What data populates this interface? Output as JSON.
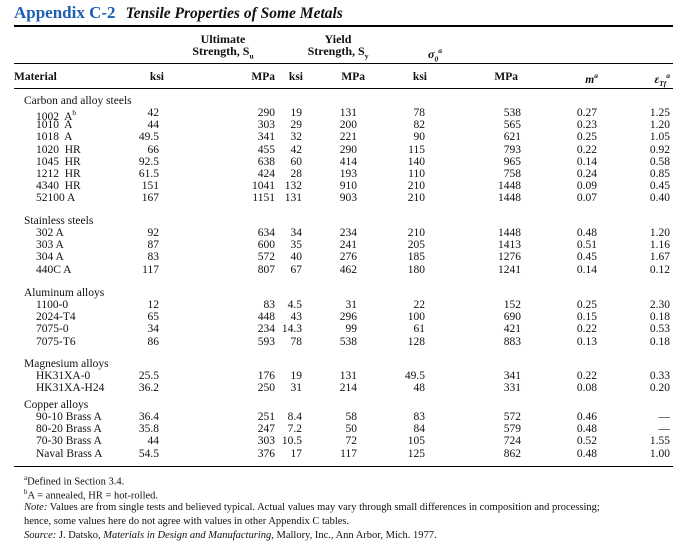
{
  "title": {
    "appendix": "Appendix C-2",
    "caption": "Tensile Properties of Some Metals"
  },
  "headers": {
    "ultimate_line1": "Ultimate",
    "ultimate_line2": "Strength, S",
    "ultimate_sub": "u",
    "yield_line1": "Yield",
    "yield_line2": "Strength, S",
    "yield_sub": "y",
    "sigma": "σ",
    "sigma_sub": "0",
    "sigma_sup": "a",
    "material": "Material",
    "units": [
      "ksi",
      "MPa",
      "ksi",
      "MPa",
      "ksi",
      "MPa"
    ],
    "m": "m",
    "m_sup": "a",
    "eps": "ε",
    "eps_sub": "Tf",
    "eps_sup": "a"
  },
  "groups": [
    {
      "title": "Carbon and alloy steels",
      "rows": [
        {
          "name": "1002  A",
          "sup": "b",
          "values": [
            "42",
            "290",
            "19",
            "131",
            "78",
            "538",
            "0.27",
            "1.25"
          ]
        },
        {
          "name": "1010  A",
          "values": [
            "44",
            "303",
            "29",
            "200",
            "82",
            "565",
            "0.23",
            "1.20"
          ]
        },
        {
          "name": "1018  A",
          "values": [
            "49.5",
            "341",
            "32",
            "221",
            "90",
            "621",
            "0.25",
            "1.05"
          ]
        },
        {
          "name": "1020  HR",
          "values": [
            "66",
            "455",
            "42",
            "290",
            "115",
            "793",
            "0.22",
            "0.92"
          ]
        },
        {
          "name": "1045  HR",
          "values": [
            "92.5",
            "638",
            "60",
            "414",
            "140",
            "965",
            "0.14",
            "0.58"
          ]
        },
        {
          "name": "1212  HR",
          "values": [
            "61.5",
            "424",
            "28",
            "193",
            "110",
            "758",
            "0.24",
            "0.85"
          ]
        },
        {
          "name": "4340  HR",
          "values": [
            "151",
            "1041",
            "132",
            "910",
            "210",
            "1448",
            "0.09",
            "0.45"
          ]
        },
        {
          "name": "52100 A",
          "values": [
            "167",
            "1151",
            "131",
            "903",
            "210",
            "1448",
            "0.07",
            "0.40"
          ]
        }
      ]
    },
    {
      "title": "Stainless steels",
      "rows": [
        {
          "name": "302 A",
          "values": [
            "92",
            "634",
            "34",
            "234",
            "210",
            "1448",
            "0.48",
            "1.20"
          ]
        },
        {
          "name": "303 A",
          "values": [
            "87",
            "600",
            "35",
            "241",
            "205",
            "1413",
            "0.51",
            "1.16"
          ]
        },
        {
          "name": "304 A",
          "values": [
            "83",
            "572",
            "40",
            "276",
            "185",
            "1276",
            "0.45",
            "1.67"
          ]
        },
        {
          "name": "440C A",
          "values": [
            "117",
            "807",
            "67",
            "462",
            "180",
            "1241",
            "0.14",
            "0.12"
          ]
        }
      ]
    },
    {
      "title": "Aluminum alloys",
      "rows": [
        {
          "name": "1100-0",
          "values": [
            "12",
            "83",
            "4.5",
            "31",
            "22",
            "152",
            "0.25",
            "2.30"
          ]
        },
        {
          "name": "2024-T4",
          "values": [
            "65",
            "448",
            "43",
            "296",
            "100",
            "690",
            "0.15",
            "0.18"
          ]
        },
        {
          "name": "7075-0",
          "values": [
            "34",
            "234",
            "14.3",
            "99",
            "61",
            "421",
            "0.22",
            "0.53"
          ]
        },
        {
          "name": "7075-T6",
          "values": [
            "86",
            "593",
            "78",
            "538",
            "128",
            "883",
            "0.13",
            "0.18"
          ]
        }
      ]
    },
    {
      "title": "Magnesium alloys",
      "rows": [
        {
          "name": "HK31XA-0",
          "values": [
            "25.5",
            "176",
            "19",
            "131",
            "49.5",
            "341",
            "0.22",
            "0.33"
          ]
        },
        {
          "name": "HK31XA-H24",
          "values": [
            "36.2",
            "250",
            "31",
            "214",
            "48",
            "331",
            "0.08",
            "0.20"
          ]
        }
      ]
    },
    {
      "title": "Copper alloys",
      "rows": [
        {
          "name": "90-10 Brass A",
          "values": [
            "36.4",
            "251",
            "8.4",
            "58",
            "83",
            "572",
            "0.46",
            "—"
          ]
        },
        {
          "name": "80-20 Brass A",
          "values": [
            "35.8",
            "247",
            "7.2",
            "50",
            "84",
            "579",
            "0.48",
            "—"
          ]
        },
        {
          "name": "70-30 Brass A",
          "values": [
            "44",
            "303",
            "10.5",
            "72",
            "105",
            "724",
            "0.52",
            "1.55"
          ]
        },
        {
          "name": "Naval Brass A",
          "values": [
            "54.5",
            "376",
            "17",
            "117",
            "125",
            "862",
            "0.48",
            "1.00"
          ]
        }
      ]
    }
  ],
  "footnotes": {
    "a_mark": "a",
    "a_text": "Defined in Section 3.4.",
    "b_mark": "b",
    "b_text": "A  =  annealed, HR  =  hot-rolled.",
    "note_label": "Note:",
    "note_text1": " Values are from single tests and believed typical. Actual values may vary through small differences in composition and processing;",
    "note_text2": "hence, some values here do not agree with values in other Appendix C tables.",
    "source_label": "Source:",
    "source_pre": " J. Datsko, ",
    "source_book": "Materials in Design and Manufacturing",
    "source_post": ", Mallory, Inc., Ann Arbor, Mich. 1977."
  }
}
